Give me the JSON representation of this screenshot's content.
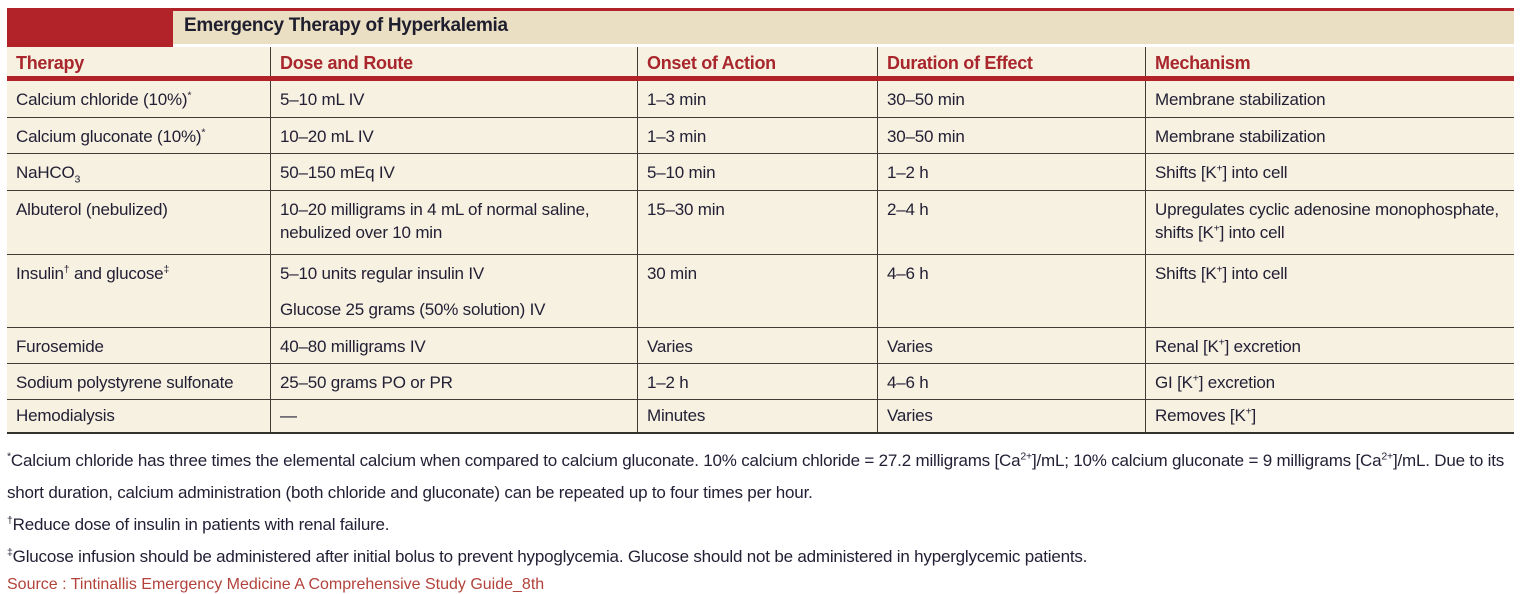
{
  "title": "Emergency Therapy of Hyperkalemia",
  "columns": [
    "Therapy",
    "Dose and Route",
    "Onset of Action",
    "Duration of Effect",
    "Mechanism"
  ],
  "rows": [
    {
      "therapy": "Calcium chloride (10%)^{*}",
      "dose": [
        "5–10 mL IV"
      ],
      "onset": "1–3 min",
      "duration": "30–50 min",
      "mechanism": "Membrane stabilization"
    },
    {
      "therapy": "Calcium gluconate (10%)^{*}",
      "dose": [
        "10–20 mL IV"
      ],
      "onset": "1–3 min",
      "duration": "30–50 min",
      "mechanism": "Membrane stabilization"
    },
    {
      "therapy": "NaHCO_{3}",
      "dose": [
        "50–150 mEq IV"
      ],
      "onset": "5–10 min",
      "duration": "1–2 h",
      "mechanism": "Shifts [K^{+}] into cell"
    },
    {
      "therapy": "Albuterol (nebulized)",
      "dose": [
        "10–20 milligrams in 4 mL of normal saline, nebulized over 10 min"
      ],
      "onset": "15–30 min",
      "duration": "2–4 h",
      "mechanism": "Upregulates cyclic adenosine monophos­phate, shifts [K^{+}] into cell"
    },
    {
      "therapy": "Insulin^{†} and glucose^{‡}",
      "dose": [
        "5–10 units regular insulin IV",
        "Glucose 25 grams (50% solution) IV"
      ],
      "onset": "30 min",
      "duration": "4–6 h",
      "mechanism": "Shifts [K^{+}] into cell"
    },
    {
      "therapy": "Furosemide",
      "dose": [
        "40–80 milligrams IV"
      ],
      "onset": "Varies",
      "duration": "Varies",
      "mechanism": "Renal [K^{+}] excretion"
    },
    {
      "therapy": "Sodium polystyrene sulfonate",
      "dose": [
        "25–50 grams PO or PR"
      ],
      "onset": "1–2 h",
      "duration": "4–6 h",
      "mechanism": "GI [K^{+}] excretion"
    },
    {
      "therapy": "Hemodialysis",
      "dose": [
        "—"
      ],
      "onset": "Minutes",
      "duration": "Varies",
      "mechanism": "Removes [K^{+}]"
    }
  ],
  "footnotes": [
    "^{*}Calcium chloride has three times the elemental calcium when compared to calcium gluconate. 10% calcium chloride = 27.2 milligrams [Ca^{2+}]/mL; 10% calcium gluconate = 9 milligrams [Ca^{2+}]/mL. Due to its short duration, calcium administration (both chloride and gluconate) can be repeated up to four times per hour.",
    "^{†}Reduce dose of insulin in patients with renal failure.",
    "^{‡}Glucose infusion should be administered after initial bolus to prevent hypoglycemia. Glucose should not be administered in hyperglycemic patients."
  ],
  "source": "Source : Tintinallis Emergency Medicine A Comprehensive Study Guide_8th",
  "colors": {
    "accent_red": "#b12329",
    "header_text_red": "#a8262c",
    "title_band_tan": "#eadfc2",
    "table_cream": "#f6f1e1",
    "body_text": "#232035",
    "grid_line": "#3f3c36",
    "source_red": "#b2423b"
  }
}
